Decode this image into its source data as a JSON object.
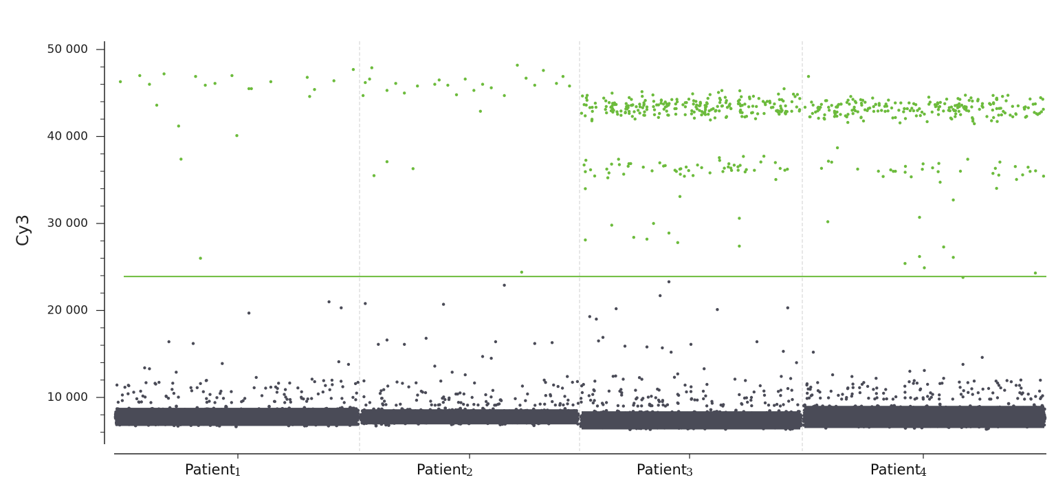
{
  "chart_data": {
    "type": "scatter",
    "ylabel": "Cy3",
    "ylim": [
      4500,
      51000
    ],
    "y_ticks": [
      {
        "value": 10000,
        "label": "10 000"
      },
      {
        "value": 20000,
        "label": "20 000"
      },
      {
        "value": 30000,
        "label": "30 000"
      },
      {
        "value": 40000,
        "label": "40 000"
      },
      {
        "value": 50000,
        "label": "50 000"
      }
    ],
    "y_minor_step": 2000,
    "categories": [
      {
        "word": "Patient",
        "number": "1"
      },
      {
        "word": "Patient",
        "number": "2"
      },
      {
        "word": "Patient",
        "number": "3"
      },
      {
        "word": "Patient",
        "number": "4"
      }
    ],
    "threshold": 23900,
    "colors": {
      "positive": "#6cbb3c",
      "negative": "#4a4b57",
      "threshold": "#6cbb3c",
      "separator": "#cfcfcf",
      "axis": "#222222"
    },
    "series": [
      {
        "category": 0,
        "positive": [
          [
            0.02,
            46300
          ],
          [
            0.1,
            47000
          ],
          [
            0.14,
            46000
          ],
          [
            0.17,
            43600
          ],
          [
            0.2,
            47200
          ],
          [
            0.26,
            41200
          ],
          [
            0.27,
            37400
          ],
          [
            0.33,
            46900
          ],
          [
            0.35,
            26000
          ],
          [
            0.37,
            45900
          ],
          [
            0.41,
            46100
          ],
          [
            0.48,
            47000
          ],
          [
            0.5,
            40100
          ],
          [
            0.55,
            45500
          ],
          [
            0.56,
            45500
          ],
          [
            0.64,
            46300
          ],
          [
            0.79,
            46800
          ],
          [
            0.8,
            44600
          ],
          [
            0.82,
            45400
          ],
          [
            0.9,
            46400
          ],
          [
            0.98,
            47700
          ],
          [
            1.02,
            44700
          ]
        ],
        "negative_outliers": [
          [
            0.12,
            13400
          ],
          [
            0.14,
            13300
          ],
          [
            0.22,
            16400
          ],
          [
            0.25,
            12900
          ],
          [
            0.32,
            16200
          ],
          [
            0.35,
            11600
          ],
          [
            0.44,
            13900
          ],
          [
            0.55,
            19700
          ],
          [
            0.58,
            12300
          ],
          [
            0.66,
            11200
          ],
          [
            0.7,
            10900
          ],
          [
            0.81,
            12100
          ],
          [
            0.88,
            21000
          ],
          [
            0.93,
            20300
          ],
          [
            0.92,
            14100
          ],
          [
            0.96,
            13800
          ]
        ],
        "negative_band": {
          "min": 6000,
          "max": 9600,
          "count": 3000
        },
        "negative_tail": {
          "min": 9400,
          "max": 12000,
          "count": 90
        }
      },
      {
        "category": 1,
        "positive": [
          [
            0.02,
            46200
          ],
          [
            0.05,
            47900
          ],
          [
            0.04,
            46600
          ],
          [
            0.12,
            45300
          ],
          [
            0.16,
            46100
          ],
          [
            0.2,
            45000
          ],
          [
            0.26,
            45800
          ],
          [
            0.34,
            46000
          ],
          [
            0.36,
            46500
          ],
          [
            0.4,
            45900
          ],
          [
            0.44,
            44800
          ],
          [
            0.48,
            46600
          ],
          [
            0.52,
            45300
          ],
          [
            0.56,
            46000
          ],
          [
            0.6,
            45600
          ],
          [
            0.66,
            44700
          ],
          [
            0.72,
            48200
          ],
          [
            0.76,
            46700
          ],
          [
            0.8,
            45900
          ],
          [
            0.84,
            47600
          ],
          [
            0.9,
            46100
          ],
          [
            0.93,
            46900
          ],
          [
            0.96,
            45800
          ],
          [
            0.55,
            42900
          ],
          [
            0.12,
            37100
          ],
          [
            0.06,
            35500
          ],
          [
            0.24,
            36300
          ],
          [
            0.74,
            24400
          ]
        ],
        "negative_outliers": [
          [
            0.02,
            20800
          ],
          [
            0.08,
            16100
          ],
          [
            0.12,
            16600
          ],
          [
            0.2,
            16100
          ],
          [
            0.3,
            16800
          ],
          [
            0.34,
            13600
          ],
          [
            0.38,
            20700
          ],
          [
            0.42,
            12900
          ],
          [
            0.48,
            12600
          ],
          [
            0.56,
            14700
          ],
          [
            0.6,
            14500
          ],
          [
            0.62,
            16400
          ],
          [
            0.66,
            22900
          ],
          [
            0.8,
            16200
          ],
          [
            0.88,
            16300
          ],
          [
            0.95,
            12400
          ]
        ],
        "negative_band": {
          "min": 6300,
          "max": 9300,
          "count": 3000
        },
        "negative_tail": {
          "min": 9100,
          "max": 12000,
          "count": 90
        }
      },
      {
        "category": 2,
        "positive_cluster_top": {
          "min": 41000,
          "max": 46000,
          "count": 230
        },
        "positive_cluster_mid": {
          "min": 34500,
          "max": 38500,
          "count": 55
        },
        "positive": [
          [
            0.02,
            28100
          ],
          [
            0.14,
            29800
          ],
          [
            0.24,
            28400
          ],
          [
            0.3,
            28200
          ],
          [
            0.33,
            30000
          ],
          [
            0.4,
            28900
          ],
          [
            0.44,
            27800
          ],
          [
            0.45,
            33100
          ],
          [
            0.72,
            30600
          ],
          [
            0.72,
            27400
          ],
          [
            0.02,
            34000
          ]
        ],
        "negative_outliers": [
          [
            0.04,
            19300
          ],
          [
            0.07,
            19000
          ],
          [
            0.1,
            16900
          ],
          [
            0.08,
            16500
          ],
          [
            0.16,
            20200
          ],
          [
            0.2,
            15900
          ],
          [
            0.3,
            15800
          ],
          [
            0.36,
            21700
          ],
          [
            0.4,
            23300
          ],
          [
            0.37,
            15700
          ],
          [
            0.44,
            12700
          ],
          [
            0.5,
            16100
          ],
          [
            0.62,
            20100
          ],
          [
            0.56,
            13300
          ],
          [
            0.7,
            12100
          ],
          [
            0.8,
            16400
          ],
          [
            0.94,
            20300
          ],
          [
            0.92,
            15300
          ],
          [
            0.98,
            14000
          ],
          [
            0.41,
            15200
          ]
        ],
        "negative_band": {
          "min": 5600,
          "max": 9200,
          "count": 3000
        },
        "negative_tail": {
          "min": 9000,
          "max": 12500,
          "count": 110
        }
      },
      {
        "category": 3,
        "positive_cluster_top": {
          "min": 40500,
          "max": 45800,
          "count": 210
        },
        "positive_cluster_mid": {
          "min": 33500,
          "max": 38500,
          "count": 30
        },
        "positive": [
          [
            0.02,
            46900
          ],
          [
            0.1,
            30200
          ],
          [
            0.48,
            30700
          ],
          [
            0.48,
            26200
          ],
          [
            0.5,
            24900
          ],
          [
            0.42,
            25400
          ],
          [
            0.58,
            27300
          ],
          [
            0.62,
            26100
          ],
          [
            0.62,
            32700
          ],
          [
            0.66,
            23800
          ],
          [
            0.96,
            24300
          ],
          [
            0.14,
            38700
          ],
          [
            0.38,
            36000
          ],
          [
            0.56,
            36900
          ]
        ],
        "negative_outliers": [
          [
            0.04,
            15200
          ],
          [
            0.12,
            12600
          ],
          [
            0.2,
            12400
          ],
          [
            0.3,
            12200
          ],
          [
            0.44,
            13000
          ],
          [
            0.58,
            12200
          ],
          [
            0.66,
            13800
          ],
          [
            0.74,
            14600
          ],
          [
            0.9,
            12000
          ],
          [
            0.5,
            13100
          ],
          [
            0.86,
            11800
          ]
        ],
        "negative_band": {
          "min": 5600,
          "max": 10000,
          "count": 3500
        },
        "negative_tail": {
          "min": 9800,
          "max": 12000,
          "count": 110
        }
      }
    ]
  }
}
